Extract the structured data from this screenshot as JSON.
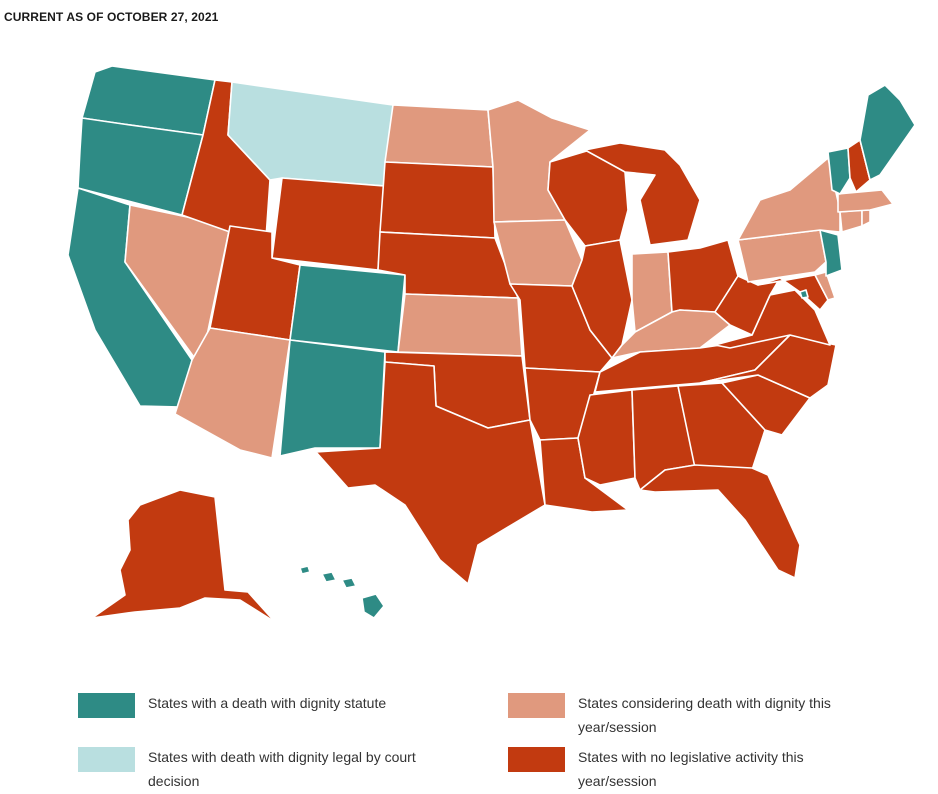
{
  "header": {
    "title": "CURRENT AS OF OCTOBER 27, 2021"
  },
  "colors": {
    "statute": "#2e8b85",
    "court": "#b9dfe0",
    "considering": "#e0997e",
    "none": "#c23a10"
  },
  "legend": [
    {
      "key": "statute",
      "label": "States with a death with dignity statute"
    },
    {
      "key": "court",
      "label": "States with death with dignity legal by court decision"
    },
    {
      "key": "considering",
      "label": "States considering death with dignity this year/session"
    },
    {
      "key": "none",
      "label": "States with no legislative activity this year/session"
    }
  ],
  "states": {
    "WA": "statute",
    "OR": "statute",
    "CA": "statute",
    "CO": "statute",
    "NM": "statute",
    "HI": "statute",
    "VT": "statute",
    "ME": "statute",
    "NJ": "statute",
    "DC": "statute",
    "MT": "court",
    "NV": "considering",
    "AZ": "considering",
    "ND": "considering",
    "MN": "considering",
    "IA": "considering",
    "KS": "considering",
    "IN": "considering",
    "KY": "considering",
    "NY": "considering",
    "PA": "considering",
    "MA": "considering",
    "CT": "considering",
    "RI": "considering",
    "DE": "considering",
    "ID": "none",
    "WY": "none",
    "UT": "none",
    "SD": "none",
    "NE": "none",
    "TX": "none",
    "OK": "none",
    "MO": "none",
    "AR": "none",
    "LA": "none",
    "WI": "none",
    "IL": "none",
    "MI": "none",
    "OH": "none",
    "WV": "none",
    "VA": "none",
    "NC": "none",
    "SC": "none",
    "GA": "none",
    "FL": "none",
    "AL": "none",
    "MS": "none",
    "TN": "none",
    "MD": "none",
    "NH": "none",
    "AK": "none"
  }
}
